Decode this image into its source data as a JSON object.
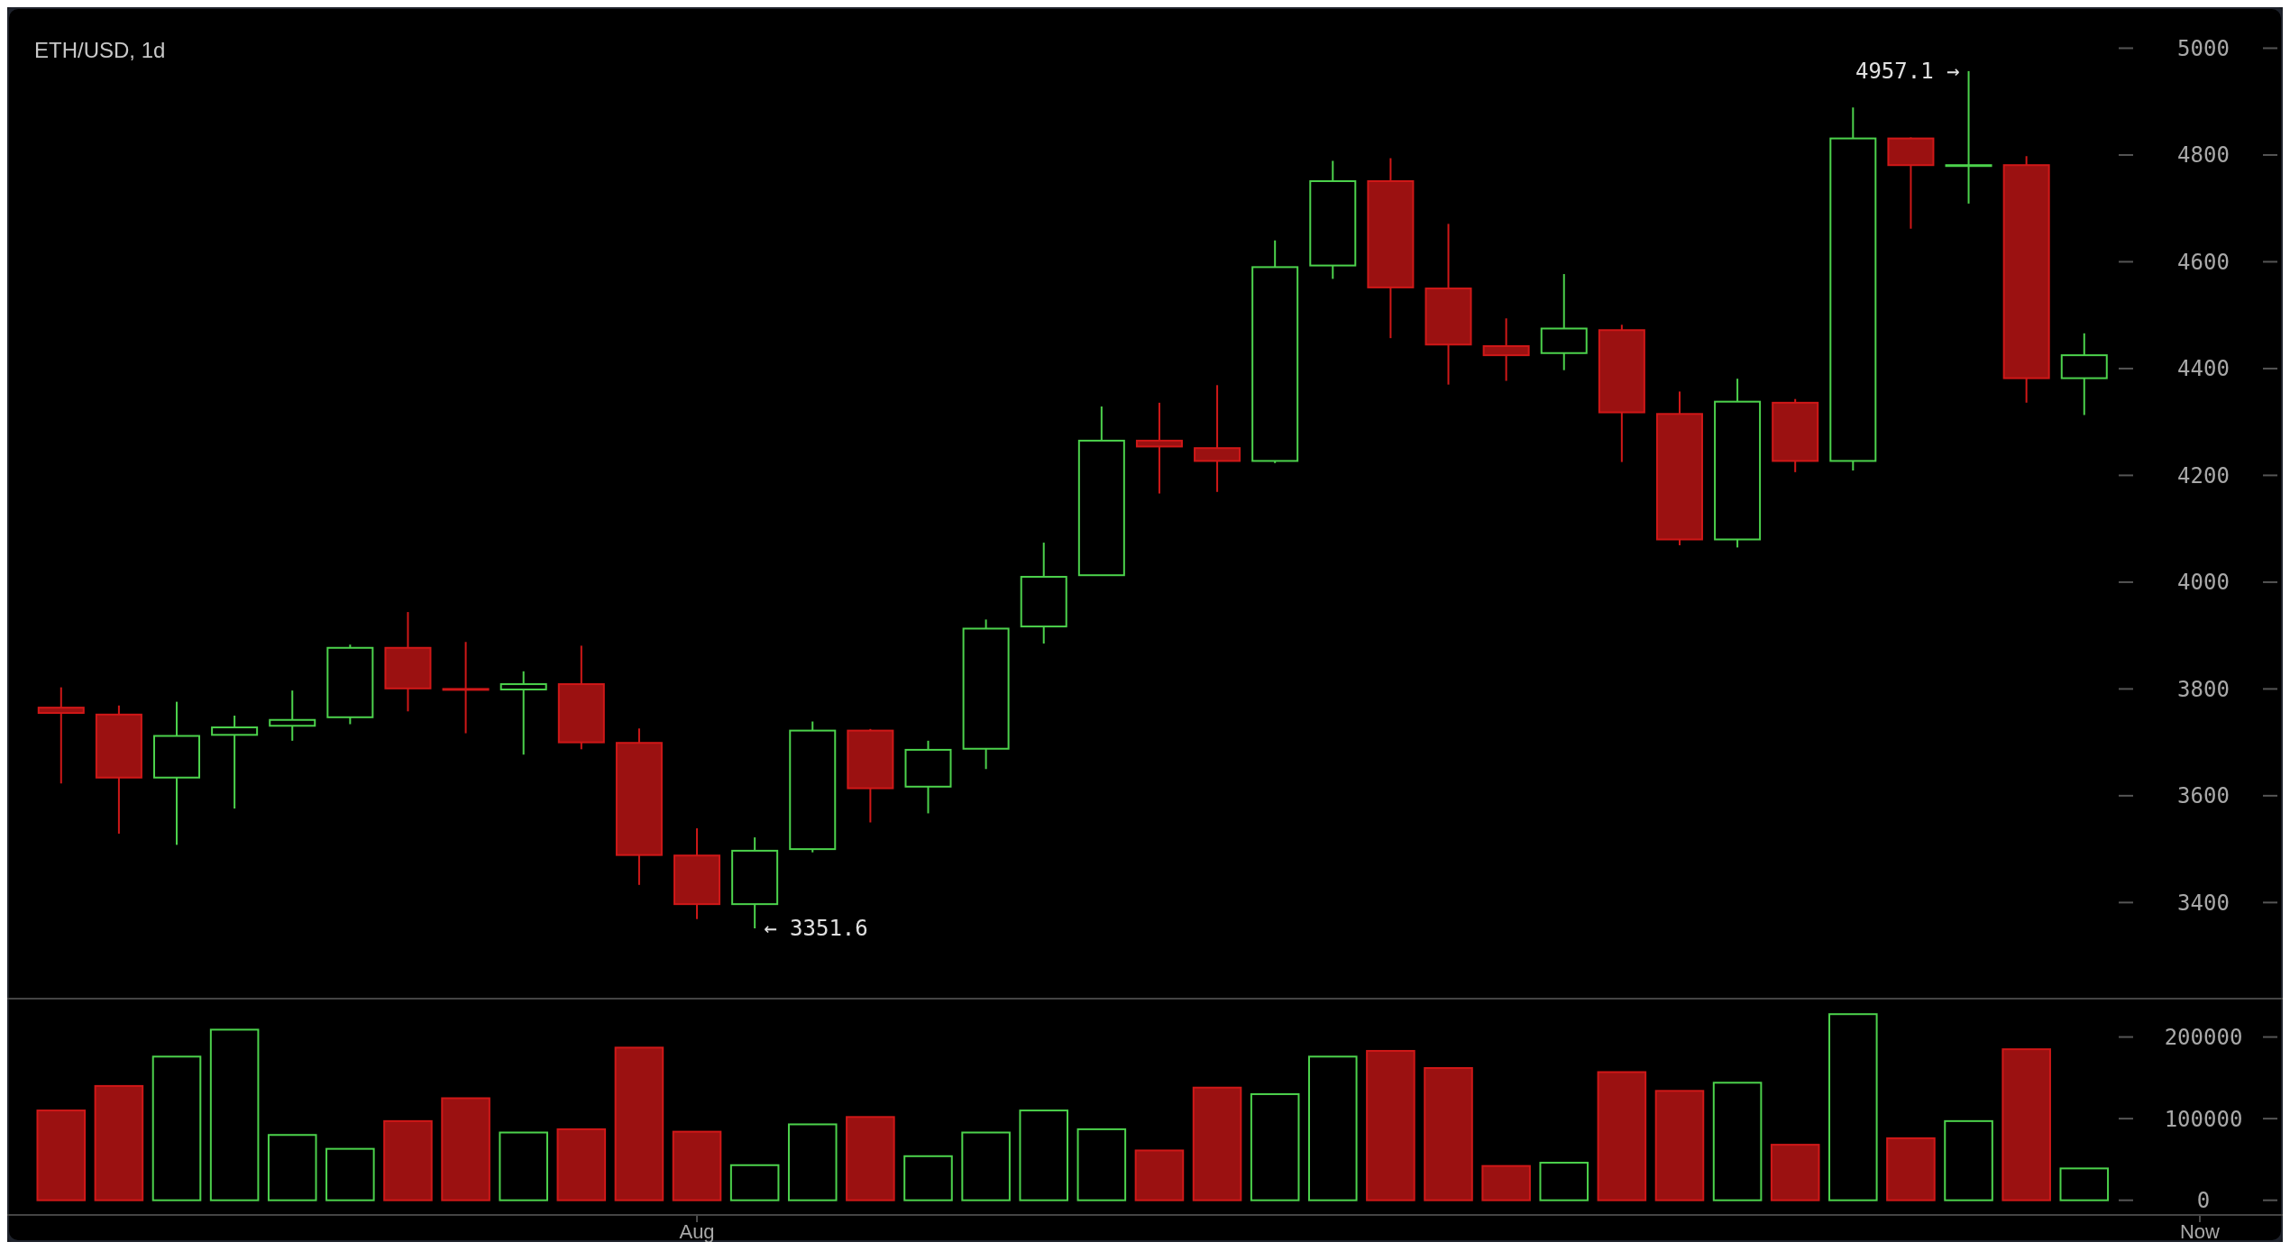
{
  "chart_data": [
    {
      "type": "candlestick",
      "title": "ETH/USD, 1d",
      "tick_labels": "y",
      "categories": [
        null,
        null,
        null,
        null,
        null,
        null,
        null,
        null,
        null,
        null,
        null,
        null,
        null,
        null,
        null,
        null,
        null,
        null,
        null,
        null,
        null,
        null,
        null,
        null,
        null,
        null,
        null,
        null,
        null,
        null,
        null,
        null,
        null,
        null,
        null,
        null,
        null,
        null
      ],
      "ohlc": [
        [
          3765,
          3803,
          3623,
          3755
        ],
        [
          3752,
          3769,
          3529,
          3634
        ],
        [
          3634,
          3776,
          3508,
          3712
        ],
        [
          3714,
          3750,
          3576,
          3728
        ],
        [
          3731,
          3797,
          3703,
          3742
        ],
        [
          3747,
          3883,
          3734,
          3877
        ],
        [
          3877,
          3944,
          3758,
          3801
        ],
        [
          3800,
          3888,
          3717,
          3799
        ],
        [
          3799,
          3833,
          3677,
          3809
        ],
        [
          3809,
          3881,
          3687,
          3700
        ],
        [
          3699,
          3726,
          3433,
          3489
        ],
        [
          3488,
          3539,
          3369,
          3397
        ],
        [
          3397,
          3522,
          3351.6,
          3497
        ],
        [
          3500,
          3739,
          3494,
          3722
        ],
        [
          3722,
          3725,
          3550,
          3614
        ],
        [
          3617,
          3703,
          3567,
          3686
        ],
        [
          3688,
          3930,
          3650,
          3913
        ],
        [
          3917,
          4074,
          3885,
          4010
        ],
        [
          4013,
          4329,
          4013,
          4265
        ],
        [
          4265,
          4336,
          4166,
          4254
        ],
        [
          4251,
          4369,
          4169,
          4227
        ],
        [
          4227,
          4640,
          4223,
          4590
        ],
        [
          4593,
          4789,
          4568,
          4751
        ],
        [
          4751,
          4794,
          4457,
          4552
        ],
        [
          4550,
          4671,
          4370,
          4445
        ],
        [
          4442,
          4494,
          4377,
          4425
        ],
        [
          4429,
          4577,
          4397,
          4475
        ],
        [
          4472,
          4482,
          4225,
          4318
        ],
        [
          4315,
          4357,
          4069,
          4080
        ],
        [
          4080,
          4381,
          4065,
          4338
        ],
        [
          4336,
          4343,
          4206,
          4227
        ],
        [
          4227,
          4889,
          4209,
          4831
        ],
        [
          4831,
          4833,
          4662,
          4781
        ],
        [
          4780,
          4957.1,
          4709,
          4781
        ],
        [
          4781,
          4798,
          4336,
          4382
        ],
        [
          4382,
          4466,
          4313,
          4425
        ],
        null,
        null
      ],
      "ylim": [
        3220,
        5070
      ],
      "yticks": [
        3400,
        3600,
        3800,
        4000,
        4200,
        4400,
        4600,
        4800,
        5000
      ],
      "annotations": [
        "4957.1 →",
        "← 3351.6"
      ]
    },
    {
      "type": "bar",
      "categories": [
        null,
        null,
        null,
        null,
        null,
        null,
        null,
        null,
        null,
        null,
        null,
        "Aug",
        null,
        null,
        null,
        null,
        null,
        null,
        null,
        null,
        null,
        null,
        null,
        null,
        null,
        null,
        null,
        null,
        null,
        null,
        null,
        null,
        null,
        null,
        null,
        null,
        null,
        "Now"
      ],
      "values": [
        110000,
        140000,
        176000,
        209000,
        80000,
        63000,
        97000,
        125000,
        83000,
        87000,
        187000,
        84000,
        43000,
        93000,
        102000,
        54000,
        83000,
        110000,
        87000,
        61000,
        138000,
        130000,
        176000,
        183000,
        162000,
        42000,
        46000,
        157000,
        134000,
        144000,
        68000,
        228000,
        76000,
        97000,
        185000,
        39000,
        null,
        null
      ],
      "colors": [
        "#9b1111",
        "#9b1111",
        "#4cd24c",
        "#4cd24c",
        "#4cd24c",
        "#4cd24c",
        "#9b1111",
        "#9b1111",
        "#4cd24c",
        "#9b1111",
        "#9b1111",
        "#9b1111",
        "#4cd24c",
        "#4cd24c",
        "#9b1111",
        "#4cd24c",
        "#4cd24c",
        "#4cd24c",
        "#4cd24c",
        "#9b1111",
        "#9b1111",
        "#4cd24c",
        "#4cd24c",
        "#9b1111",
        "#9b1111",
        "#9b1111",
        "#4cd24c",
        "#9b1111",
        "#9b1111",
        "#4cd24c",
        "#9b1111",
        "#4cd24c",
        "#9b1111",
        "#4cd24c",
        "#9b1111",
        "#4cd24c",
        null,
        null
      ],
      "ylim": [
        -18000,
        247000
      ],
      "yticks": [
        0,
        100000,
        200000
      ]
    }
  ]
}
